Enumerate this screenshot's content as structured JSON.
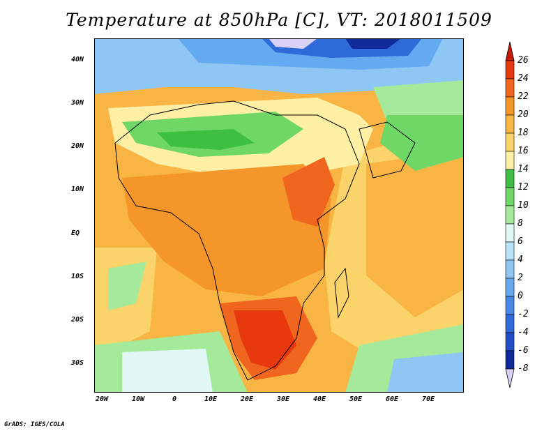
{
  "title": "Temperature at 850hPa [C], VT: 2018011509",
  "credit": "GrADS: IGES/COLA",
  "y_axis_labels": [
    "40N",
    "30N",
    "20N",
    "10N",
    "EQ",
    "10S",
    "20S",
    "30S"
  ],
  "x_axis_labels": [
    "20W",
    "10W",
    "0",
    "10E",
    "20E",
    "30E",
    "40E",
    "50E",
    "60E",
    "70E"
  ],
  "colorbar": {
    "labels": [
      "26",
      "24",
      "22",
      "20",
      "18",
      "16",
      "14",
      "12",
      "10",
      "8",
      "6",
      "4",
      "2",
      "0",
      "-2",
      "-4",
      "-6",
      "-8"
    ],
    "colors": [
      "#e8380e",
      "#f0661e",
      "#f5962b",
      "#f8b544",
      "#fad36a",
      "#fdf0a5",
      "#3fbf42",
      "#6ed766",
      "#a4ea9a",
      "#e0f7f5",
      "#b4e3f8",
      "#8ec7f3",
      "#64aaf0",
      "#4488e4",
      "#2e6bd8",
      "#1f4fc4",
      "#112a9a",
      "#dad2f6"
    ],
    "top_triangle_color": "#c8180a",
    "bottom_triangle_color": "#dad2f6"
  },
  "map": {
    "lon_range": [
      -25,
      80
    ],
    "lat_range": [
      -37,
      45
    ],
    "fields": {
      "ocean_background": "#f8b544",
      "sahara_cool": "#6ed766",
      "north_cold": "#64aaf0",
      "tropical_warm": "#f0661e",
      "southern_africa_hot": "#e8380e",
      "southern_ocean_cool": "#a4ea9a"
    }
  }
}
